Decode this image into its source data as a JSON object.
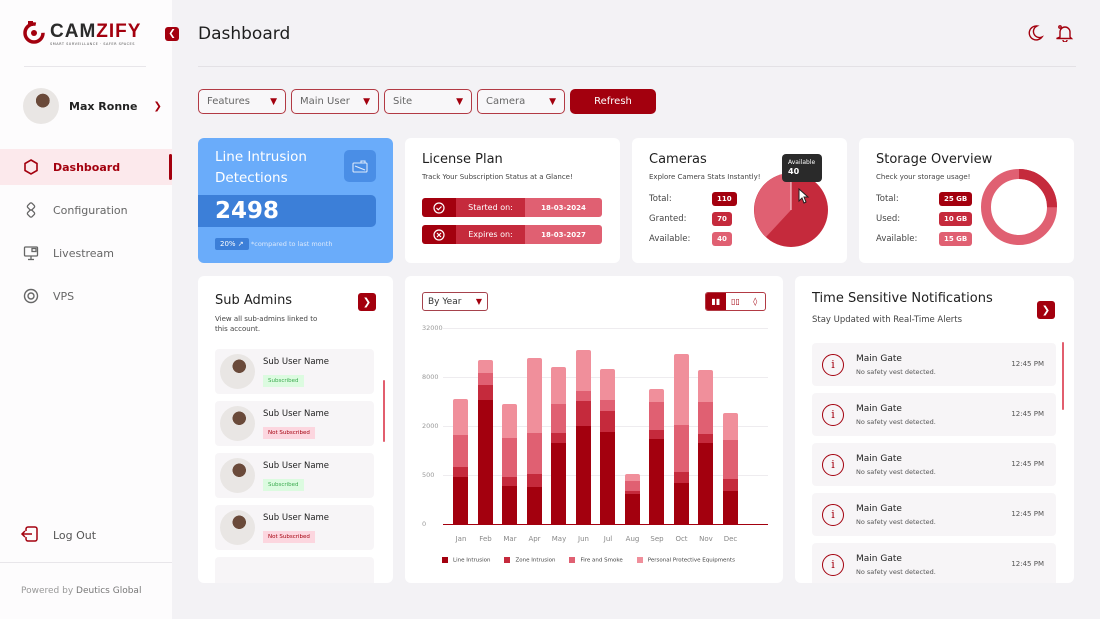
{
  "brand": {
    "name_part1": "CAM",
    "name_part2": "ZIFY",
    "tagline": "SMART SURVEILLANCE · SAFER SPACES"
  },
  "header": {
    "title": "Dashboard"
  },
  "user": {
    "name": "Max Ronne"
  },
  "sidebar": {
    "items": [
      {
        "label": "Dashboard",
        "icon": "hexagon-icon",
        "active": true
      },
      {
        "label": "Configuration",
        "icon": "config-icon"
      },
      {
        "label": "Livestream",
        "icon": "monitor-icon"
      },
      {
        "label": "VPS",
        "icon": "target-icon"
      }
    ],
    "logout": "Log Out",
    "powered_prefix": "Powered by ",
    "powered_brand": "Deutics Global"
  },
  "filters": {
    "features": "Features",
    "main_user": "Main User",
    "site": "Site",
    "camera": "Camera",
    "refresh": "Refresh"
  },
  "intrusion": {
    "title": "Line Intrusion Detections",
    "value": "2498",
    "change": "20% ↗",
    "compare": "*compared to last month"
  },
  "license": {
    "title": "License Plan",
    "subtitle": "Track Your Subscription Status at a Glance!",
    "started_label": "Started on:",
    "started_date": "18-03-2024",
    "expires_label": "Expires on:",
    "expires_date": "18-03-2027"
  },
  "cameras": {
    "title": "Cameras",
    "subtitle": "Explore Camera Stats Instantly!",
    "total_label": "Total:",
    "total": "110",
    "granted_label": "Granted:",
    "granted": "70",
    "available_label": "Available:",
    "available": "40",
    "tooltip_label": "Available",
    "tooltip_value": "40"
  },
  "storage": {
    "title": "Storage Overview",
    "subtitle": "Check your storage usage!",
    "total_label": "Total:",
    "total": "25 GB",
    "used_label": "Used:",
    "used": "10 GB",
    "available_label": "Available:",
    "available": "15 GB"
  },
  "subadmins": {
    "title": "Sub Admins",
    "subtitle": "View all sub-admins linked to this account.",
    "items": [
      {
        "name": "Sub User Name",
        "status": "Subscribed"
      },
      {
        "name": "Sub User Name",
        "status": "Not Subscribed"
      },
      {
        "name": "Sub User Name",
        "status": "Subscribed"
      },
      {
        "name": "Sub User Name",
        "status": "Not Subscribed"
      }
    ]
  },
  "chart_controls": {
    "period": "By Year"
  },
  "chart_data": {
    "type": "bar",
    "stacked": true,
    "title": "",
    "xlabel": "",
    "ylabel": "",
    "y_scale": "log4",
    "y_ticks": [
      "0",
      "500",
      "2000",
      "8000",
      "32000"
    ],
    "ylim": [
      0,
      32000
    ],
    "grid": true,
    "legend_position": "bottom",
    "categories": [
      "Jan",
      "Feb",
      "Mar",
      "Apr",
      "May",
      "Jun",
      "Jul",
      "Aug",
      "Sep",
      "Oct",
      "Nov",
      "Dec"
    ],
    "series": [
      {
        "name": "Line Intrusion",
        "color": "#a3000e",
        "values": [
          480,
          4200,
          390,
          380,
          1250,
          2000,
          1700,
          310,
          1400,
          420,
          1250,
          340
        ]
      },
      {
        "name": "Zone Intrusion",
        "color": "#c52a3c",
        "values": [
          150,
          2100,
          90,
          140,
          400,
          2000,
          1400,
          30,
          400,
          120,
          350,
          120
        ]
      },
      {
        "name": "Fire and Smoke",
        "color": "#e06072",
        "values": [
          900,
          2600,
          950,
          1100,
          2100,
          1400,
          1100,
          100,
          2200,
          1500,
          2400,
          900
        ]
      },
      {
        "name": "Personal Protective Equipments",
        "color": "#f08f9b",
        "values": [
          2800,
          4000,
          2300,
          12000,
          7000,
          12000,
          5800,
          80,
          1700,
          13500,
          5800,
          1500
        ]
      }
    ]
  },
  "notifications": {
    "title": "Time Sensitive Notifications",
    "subtitle": "Stay Updated with Real-Time Alerts",
    "items": [
      {
        "title": "Main Gate",
        "desc": "No safety vest detected.",
        "time": "12:45 PM"
      },
      {
        "title": "Main Gate",
        "desc": "No safety vest detected.",
        "time": "12:45 PM"
      },
      {
        "title": "Main Gate",
        "desc": "No safety vest detected.",
        "time": "12:45 PM"
      },
      {
        "title": "Main Gate",
        "desc": "No safety vest detected.",
        "time": "12:45 PM"
      },
      {
        "title": "Main Gate",
        "desc": "No safety vest detected.",
        "time": "12:45 PM"
      }
    ]
  }
}
